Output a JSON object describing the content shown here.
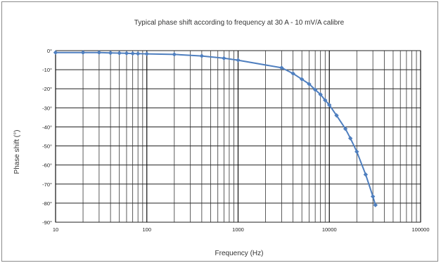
{
  "chart_data": {
    "type": "line",
    "title": "Typical phase shift according to frequency at 30 A - 10 mV/A calibre",
    "xlabel": "Frequency (Hz)",
    "ylabel": "Phase shift (°)",
    "x_scale": "log",
    "xlim": [
      10,
      100000
    ],
    "ylim": [
      -90,
      0
    ],
    "x_ticks": [
      10,
      100,
      1000,
      10000,
      100000
    ],
    "x_tick_labels": [
      "10",
      "100",
      "1000",
      "10000",
      "100000"
    ],
    "y_ticks": [
      0,
      -10,
      -20,
      -30,
      -40,
      -50,
      -60,
      -70,
      -80,
      -90
    ],
    "y_tick_labels": [
      "0°",
      "-10°",
      "-20°",
      "-30°",
      "-40°",
      "-50°",
      "-60°",
      "-70°",
      "-80°",
      "-90°"
    ],
    "grid": true,
    "legend": false,
    "series": [
      {
        "color": "#4f7fbf",
        "points": [
          [
            10,
            -1
          ],
          [
            20,
            -1
          ],
          [
            30,
            -1
          ],
          [
            40,
            -1.2
          ],
          [
            50,
            -1.3
          ],
          [
            60,
            -1.4
          ],
          [
            70,
            -1.5
          ],
          [
            80,
            -1.6
          ],
          [
            100,
            -1.7
          ],
          [
            200,
            -2
          ],
          [
            400,
            -2.8
          ],
          [
            700,
            -4
          ],
          [
            1000,
            -5
          ],
          [
            3000,
            -9
          ],
          [
            4000,
            -12
          ],
          [
            5000,
            -15
          ],
          [
            6000,
            -17.5
          ],
          [
            7000,
            -20.5
          ],
          [
            8000,
            -23
          ],
          [
            9000,
            -26
          ],
          [
            10000,
            -28.5
          ],
          [
            12000,
            -34
          ],
          [
            15000,
            -41
          ],
          [
            17000,
            -46
          ],
          [
            20000,
            -53
          ],
          [
            25000,
            -65
          ],
          [
            30000,
            -76.5
          ],
          [
            32000,
            -81
          ]
        ]
      }
    ]
  }
}
